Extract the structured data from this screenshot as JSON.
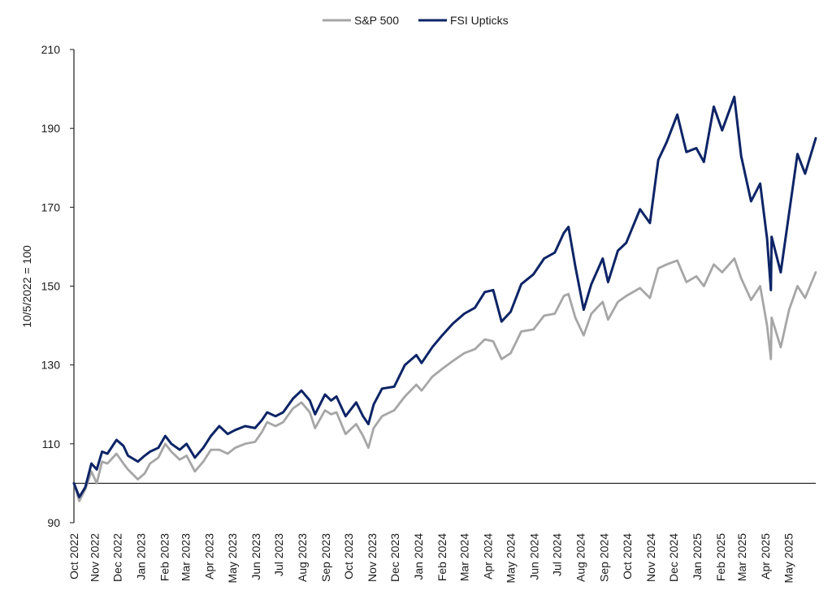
{
  "chart_data": {
    "type": "line",
    "title": "",
    "xlabel": "",
    "ylabel": "10/5/2022 = 100",
    "ylim": [
      90,
      210
    ],
    "yticks": [
      90,
      110,
      130,
      150,
      170,
      190,
      210
    ],
    "reference_line": 100,
    "grid": false,
    "legend_position": "top-center",
    "x_start": "2022-10-05",
    "x_end": "2025-06-06",
    "x_tick_labels": [
      "Oct 2022",
      "Nov 2022",
      "Dec 2022",
      "Jan 2023",
      "Feb 2023",
      "Mar 2023",
      "Apr 2023",
      "May 2023",
      "Jun 2023",
      "Jul 2023",
      "Aug 2023",
      "Sep 2023",
      "Oct 2023",
      "Nov 2023",
      "Dec 2023",
      "Jan 2024",
      "Feb 2024",
      "Mar 2024",
      "Apr 2024",
      "May 2024",
      "Jun 2024",
      "Jul 2024",
      "Aug 2024",
      "Sep 2024",
      "Oct 2024",
      "Nov 2024",
      "Dec 2024",
      "Jan 2025",
      "Feb 2025",
      "Mar 2025",
      "Apr 2025",
      "May 2025"
    ],
    "x_tick_dates": [
      "2022-10-01",
      "2022-11-01",
      "2022-12-01",
      "2023-01-01",
      "2023-02-01",
      "2023-03-01",
      "2023-04-01",
      "2023-05-01",
      "2023-06-01",
      "2023-07-01",
      "2023-08-01",
      "2023-09-01",
      "2023-10-01",
      "2023-11-01",
      "2023-12-01",
      "2024-01-01",
      "2024-02-01",
      "2024-03-01",
      "2024-04-01",
      "2024-05-01",
      "2024-06-01",
      "2024-07-01",
      "2024-08-01",
      "2024-09-01",
      "2024-10-01",
      "2024-11-01",
      "2024-12-01",
      "2025-01-01",
      "2025-02-01",
      "2025-03-01",
      "2025-04-01",
      "2025-05-01"
    ],
    "series": [
      {
        "name": "S&P 500",
        "color": "#a6a6a6",
        "points": [
          [
            "2022-10-05",
            100
          ],
          [
            "2022-10-12",
            95.5
          ],
          [
            "2022-10-20",
            98.5
          ],
          [
            "2022-10-28",
            103
          ],
          [
            "2022-11-04",
            100
          ],
          [
            "2022-11-11",
            105.5
          ],
          [
            "2022-11-18",
            105
          ],
          [
            "2022-11-30",
            107.5
          ],
          [
            "2022-12-09",
            105
          ],
          [
            "2022-12-15",
            103.5
          ],
          [
            "2022-12-28",
            101
          ],
          [
            "2023-01-06",
            102.5
          ],
          [
            "2023-01-13",
            105
          ],
          [
            "2023-01-24",
            106.5
          ],
          [
            "2023-02-02",
            110
          ],
          [
            "2023-02-10",
            108
          ],
          [
            "2023-02-21",
            106
          ],
          [
            "2023-03-02",
            107
          ],
          [
            "2023-03-13",
            103
          ],
          [
            "2023-03-24",
            105.5
          ],
          [
            "2023-04-03",
            108.5
          ],
          [
            "2023-04-14",
            108.5
          ],
          [
            "2023-04-25",
            107.5
          ],
          [
            "2023-05-05",
            109
          ],
          [
            "2023-05-18",
            110
          ],
          [
            "2023-05-31",
            110.5
          ],
          [
            "2023-06-09",
            113
          ],
          [
            "2023-06-16",
            115.5
          ],
          [
            "2023-06-27",
            114.5
          ],
          [
            "2023-07-07",
            115.5
          ],
          [
            "2023-07-20",
            119
          ],
          [
            "2023-07-31",
            120.5
          ],
          [
            "2023-08-11",
            118
          ],
          [
            "2023-08-18",
            114
          ],
          [
            "2023-08-31",
            118.5
          ],
          [
            "2023-09-08",
            117.5
          ],
          [
            "2023-09-15",
            118
          ],
          [
            "2023-09-27",
            112.5
          ],
          [
            "2023-10-11",
            115
          ],
          [
            "2023-10-20",
            112
          ],
          [
            "2023-10-27",
            109
          ],
          [
            "2023-11-03",
            114
          ],
          [
            "2023-11-14",
            117
          ],
          [
            "2023-11-30",
            118.5
          ],
          [
            "2023-12-14",
            122
          ],
          [
            "2023-12-29",
            125
          ],
          [
            "2024-01-05",
            123.5
          ],
          [
            "2024-01-19",
            127
          ],
          [
            "2024-02-01",
            129
          ],
          [
            "2024-02-15",
            131
          ],
          [
            "2024-03-01",
            133
          ],
          [
            "2024-03-15",
            134
          ],
          [
            "2024-03-28",
            136.5
          ],
          [
            "2024-04-08",
            136
          ],
          [
            "2024-04-19",
            131.5
          ],
          [
            "2024-05-01",
            133
          ],
          [
            "2024-05-15",
            138.5
          ],
          [
            "2024-05-31",
            139
          ],
          [
            "2024-06-14",
            142.5
          ],
          [
            "2024-06-28",
            143
          ],
          [
            "2024-07-10",
            147.5
          ],
          [
            "2024-07-16",
            148
          ],
          [
            "2024-07-25",
            142
          ],
          [
            "2024-08-05",
            137.5
          ],
          [
            "2024-08-15",
            143
          ],
          [
            "2024-08-30",
            146
          ],
          [
            "2024-09-06",
            141.5
          ],
          [
            "2024-09-19",
            146
          ],
          [
            "2024-09-30",
            147.5
          ],
          [
            "2024-10-18",
            149.5
          ],
          [
            "2024-10-31",
            147
          ],
          [
            "2024-11-11",
            154.5
          ],
          [
            "2024-11-22",
            155.5
          ],
          [
            "2024-12-06",
            156.5
          ],
          [
            "2024-12-18",
            151
          ],
          [
            "2024-12-31",
            152.5
          ],
          [
            "2025-01-10",
            150
          ],
          [
            "2025-01-23",
            155.5
          ],
          [
            "2025-02-03",
            153.5
          ],
          [
            "2025-02-19",
            157
          ],
          [
            "2025-02-28",
            152
          ],
          [
            "2025-03-13",
            146.5
          ],
          [
            "2025-03-25",
            150
          ],
          [
            "2025-04-03",
            140
          ],
          [
            "2025-04-08",
            131.5
          ],
          [
            "2025-04-09",
            142
          ],
          [
            "2025-04-21",
            134.5
          ],
          [
            "2025-05-02",
            144
          ],
          [
            "2025-05-13",
            150
          ],
          [
            "2025-05-23",
            147
          ],
          [
            "2025-06-06",
            153.5
          ]
        ]
      },
      {
        "name": "FSI Upticks",
        "color": "#0d2466",
        "points": [
          [
            "2022-10-05",
            100
          ],
          [
            "2022-10-12",
            96.5
          ],
          [
            "2022-10-20",
            99
          ],
          [
            "2022-10-28",
            105
          ],
          [
            "2022-11-04",
            103.5
          ],
          [
            "2022-11-11",
            108
          ],
          [
            "2022-11-18",
            107.5
          ],
          [
            "2022-11-30",
            111
          ],
          [
            "2022-12-09",
            109.5
          ],
          [
            "2022-12-15",
            107
          ],
          [
            "2022-12-28",
            105.5
          ],
          [
            "2023-01-06",
            107
          ],
          [
            "2023-01-13",
            108
          ],
          [
            "2023-01-24",
            109
          ],
          [
            "2023-02-02",
            112
          ],
          [
            "2023-02-10",
            110
          ],
          [
            "2023-02-21",
            108.5
          ],
          [
            "2023-03-02",
            110
          ],
          [
            "2023-03-13",
            106.5
          ],
          [
            "2023-03-24",
            109
          ],
          [
            "2023-04-03",
            112
          ],
          [
            "2023-04-14",
            114.5
          ],
          [
            "2023-04-25",
            112.5
          ],
          [
            "2023-05-05",
            113.5
          ],
          [
            "2023-05-18",
            114.5
          ],
          [
            "2023-05-31",
            114
          ],
          [
            "2023-06-09",
            116
          ],
          [
            "2023-06-16",
            118
          ],
          [
            "2023-06-27",
            117
          ],
          [
            "2023-07-07",
            118
          ],
          [
            "2023-07-20",
            121.5
          ],
          [
            "2023-07-31",
            123.5
          ],
          [
            "2023-08-11",
            121
          ],
          [
            "2023-08-18",
            117.5
          ],
          [
            "2023-08-31",
            122.5
          ],
          [
            "2023-09-08",
            121
          ],
          [
            "2023-09-15",
            122
          ],
          [
            "2023-09-27",
            117
          ],
          [
            "2023-10-11",
            120.5
          ],
          [
            "2023-10-20",
            117
          ],
          [
            "2023-10-27",
            115
          ],
          [
            "2023-11-03",
            120
          ],
          [
            "2023-11-14",
            124
          ],
          [
            "2023-11-30",
            124.5
          ],
          [
            "2023-12-14",
            130
          ],
          [
            "2023-12-29",
            132.5
          ],
          [
            "2024-01-05",
            130.5
          ],
          [
            "2024-01-19",
            134.5
          ],
          [
            "2024-02-01",
            137.5
          ],
          [
            "2024-02-15",
            140.5
          ],
          [
            "2024-03-01",
            143
          ],
          [
            "2024-03-15",
            144.5
          ],
          [
            "2024-03-28",
            148.5
          ],
          [
            "2024-04-08",
            149
          ],
          [
            "2024-04-19",
            141
          ],
          [
            "2024-05-01",
            143.5
          ],
          [
            "2024-05-15",
            150.5
          ],
          [
            "2024-05-31",
            153
          ],
          [
            "2024-06-14",
            157
          ],
          [
            "2024-06-28",
            158.5
          ],
          [
            "2024-07-10",
            163.5
          ],
          [
            "2024-07-16",
            165
          ],
          [
            "2024-07-25",
            155
          ],
          [
            "2024-08-05",
            144
          ],
          [
            "2024-08-15",
            150.5
          ],
          [
            "2024-08-30",
            157
          ],
          [
            "2024-09-06",
            151
          ],
          [
            "2024-09-19",
            159
          ],
          [
            "2024-09-30",
            161
          ],
          [
            "2024-10-18",
            169.5
          ],
          [
            "2024-10-31",
            166
          ],
          [
            "2024-11-11",
            182
          ],
          [
            "2024-11-22",
            186.5
          ],
          [
            "2024-12-06",
            193.5
          ],
          [
            "2024-12-18",
            184
          ],
          [
            "2024-12-31",
            185
          ],
          [
            "2025-01-10",
            181.5
          ],
          [
            "2025-01-23",
            195.5
          ],
          [
            "2025-02-03",
            189.5
          ],
          [
            "2025-02-19",
            198
          ],
          [
            "2025-02-28",
            183
          ],
          [
            "2025-03-13",
            171.5
          ],
          [
            "2025-03-25",
            176
          ],
          [
            "2025-04-03",
            162
          ],
          [
            "2025-04-08",
            149
          ],
          [
            "2025-04-09",
            162.5
          ],
          [
            "2025-04-21",
            153.5
          ],
          [
            "2025-05-02",
            168.5
          ],
          [
            "2025-05-13",
            183.5
          ],
          [
            "2025-05-23",
            178.5
          ],
          [
            "2025-06-06",
            187.5
          ]
        ]
      }
    ]
  }
}
